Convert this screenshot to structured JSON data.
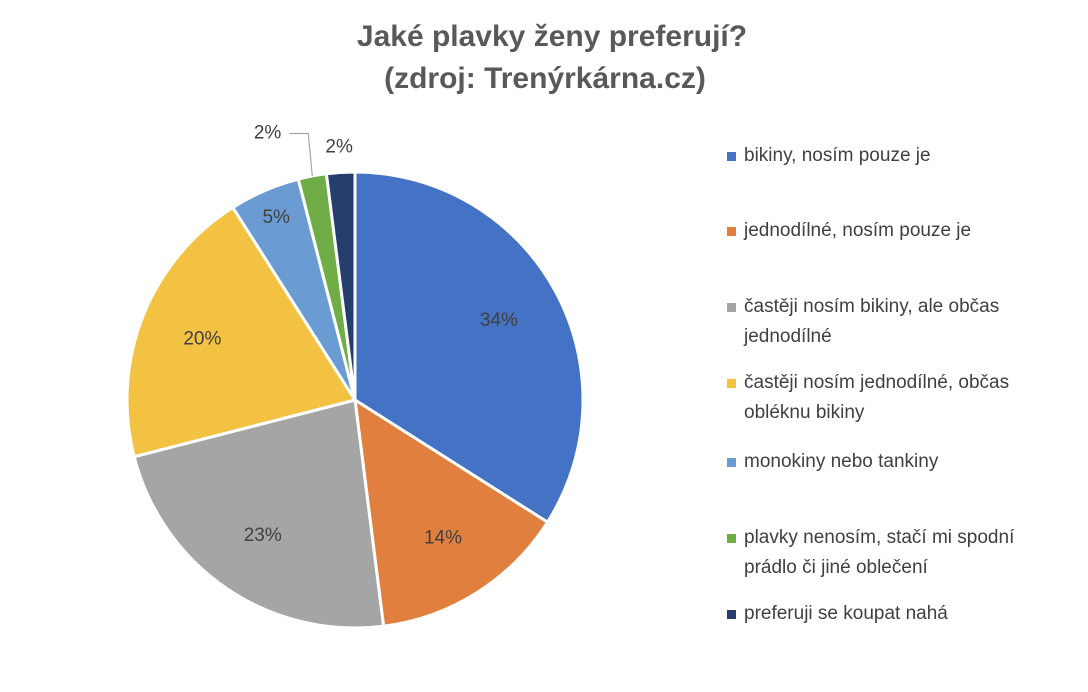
{
  "chart_data": {
    "type": "pie",
    "title": "Jaké plavky ženy preferují?",
    "subtitle": "(zdroj: Trenýrkárna.cz)",
    "categories": [
      "bikiny, nosím pouze je",
      "jednodílné, nosím pouze je",
      "častěji nosím bikiny, ale občas jednodílné",
      "častěji nosím jednodílné, občas obléknu bikiny",
      "monokiny nebo tankiny",
      "plavky nenosím, stačí mi spodní prádlo či jiné oblečení",
      "preferuji se koupat nahá"
    ],
    "values": [
      34,
      14,
      23,
      20,
      5,
      2,
      2
    ],
    "value_labels": [
      "34%",
      "14%",
      "23%",
      "20%",
      "5%",
      "2%",
      "2%"
    ],
    "colors": [
      "#4472c4",
      "#e07f3e",
      "#a5a5a5",
      "#f4c242",
      "#6a9bd3",
      "#70ad47",
      "#263e6e"
    ],
    "legend": "right"
  }
}
